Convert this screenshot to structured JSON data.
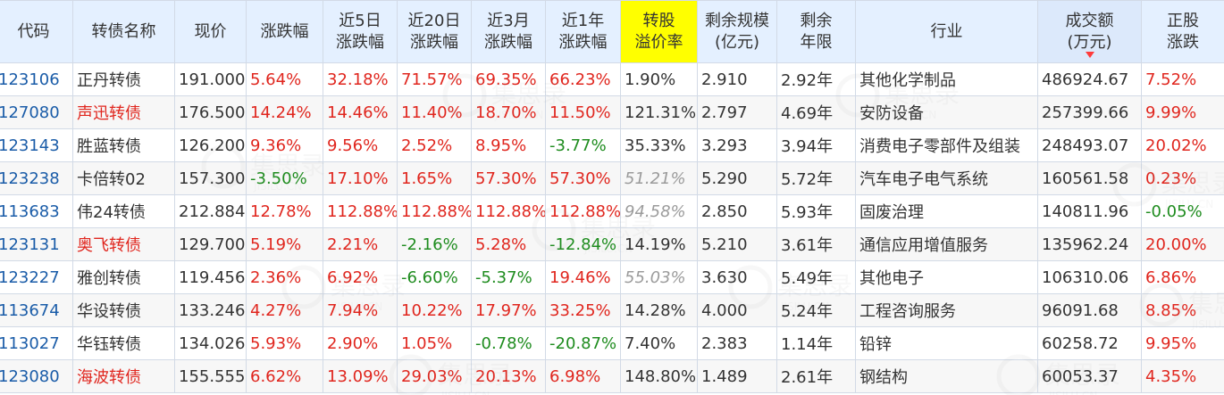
{
  "table": {
    "headers": [
      {
        "l1": "代码",
        "l2": ""
      },
      {
        "l1": "转债名称",
        "l2": ""
      },
      {
        "l1": "现价",
        "l2": ""
      },
      {
        "l1": "涨跌幅",
        "l2": ""
      },
      {
        "l1": "近5日",
        "l2": "涨跌幅"
      },
      {
        "l1": "近20日",
        "l2": "涨跌幅"
      },
      {
        "l1": "近3月",
        "l2": "涨跌幅"
      },
      {
        "l1": "近1年",
        "l2": "涨跌幅"
      },
      {
        "l1": "转股",
        "l2": "溢价率"
      },
      {
        "l1": "剩余规模",
        "l2": "(亿元)"
      },
      {
        "l1": "剩余",
        "l2": "年限"
      },
      {
        "l1": "行业",
        "l2": ""
      },
      {
        "l1": "成交额",
        "l2": "(万元)"
      },
      {
        "l1": "正股",
        "l2": "涨跌"
      }
    ],
    "rows": [
      [
        "123106",
        "正丹转债",
        "191.000",
        "5.64%",
        "32.18%",
        "71.57%",
        "69.35%",
        "66.23%",
        "1.90%",
        "2.910",
        "2.92年",
        "其他化学制品",
        "486924.67",
        "7.52%"
      ],
      [
        "127080",
        "声迅转债",
        "176.500",
        "14.24%",
        "14.46%",
        "11.40%",
        "18.70%",
        "11.50%",
        "121.31%",
        "2.797",
        "4.69年",
        "安防设备",
        "257399.66",
        "9.99%"
      ],
      [
        "123143",
        "胜蓝转债",
        "126.200",
        "9.36%",
        "9.56%",
        "2.52%",
        "8.95%",
        "-3.77%",
        "35.33%",
        "3.293",
        "3.94年",
        "消费电子零部件及组装",
        "248493.07",
        "20.02%"
      ],
      [
        "123238",
        "卡倍转02",
        "157.300",
        "-3.50%",
        "17.10%",
        "1.65%",
        "57.30%",
        "57.30%",
        "51.21%",
        "5.290",
        "5.72年",
        "汽车电子电气系统",
        "160561.58",
        "0.23%"
      ],
      [
        "113683",
        "伟24转债",
        "212.884",
        "12.78%",
        "112.88%",
        "112.88%",
        "112.88%",
        "112.88%",
        "94.58%",
        "2.850",
        "5.93年",
        "固废治理",
        "140811.96",
        "-0.05%"
      ],
      [
        "123131",
        "奥飞转债",
        "129.700",
        "5.19%",
        "2.21%",
        "-2.16%",
        "5.28%",
        "-12.84%",
        "14.19%",
        "5.210",
        "3.61年",
        "通信应用增值服务",
        "135962.24",
        "20.00%"
      ],
      [
        "123227",
        "雅创转债",
        "119.456",
        "2.36%",
        "6.92%",
        "-6.60%",
        "-5.37%",
        "19.46%",
        "55.03%",
        "3.630",
        "5.49年",
        "其他电子",
        "106310.06",
        "6.86%"
      ],
      [
        "113674",
        "华设转债",
        "133.246",
        "4.27%",
        "7.94%",
        "10.22%",
        "17.97%",
        "33.25%",
        "14.28%",
        "4.000",
        "5.24年",
        "工程咨询服务",
        "96091.68",
        "8.85%"
      ],
      [
        "113027",
        "华钰转债",
        "134.026",
        "5.93%",
        "2.90%",
        "1.05%",
        "-0.78%",
        "-20.87%",
        "7.40%",
        "2.383",
        "1.14年",
        "铅锌",
        "60258.72",
        "9.95%"
      ],
      [
        "123080",
        "海波转债",
        "155.555",
        "6.62%",
        "13.09%",
        "29.03%",
        "20.13%",
        "6.98%",
        "148.80%",
        "1.489",
        "2.61年",
        "钢结构",
        "60053.37",
        "4.35%"
      ]
    ],
    "name_colors": [
      "black",
      "red",
      "black",
      "black",
      "black",
      "red",
      "black",
      "black",
      "black",
      "red"
    ],
    "premium_muted": [
      false,
      false,
      false,
      true,
      true,
      false,
      true,
      false,
      false,
      false
    ]
  },
  "watermark": {
    "text": "集思录",
    "subtext": "JISILU.CN"
  },
  "colors": {
    "up": "#e0261e",
    "down": "#1e8c1e",
    "code": "#1a5ca8",
    "highlight": "#ffff00",
    "header_bg": "#e4f0ff"
  }
}
